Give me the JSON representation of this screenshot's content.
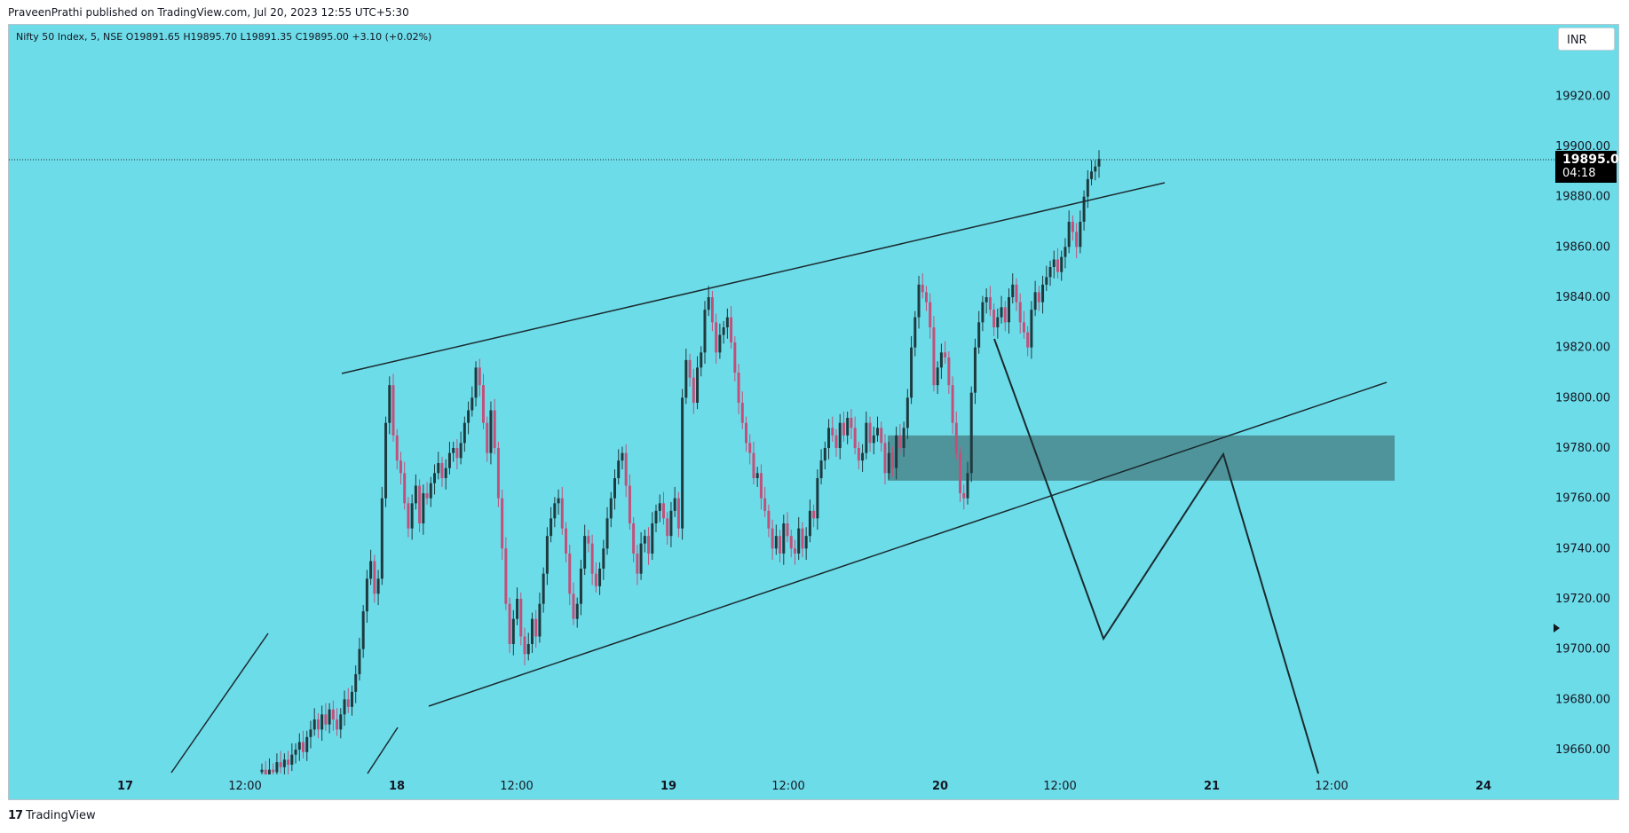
{
  "header": {
    "published": "PraveenPrathi published on TradingView.com, Jul 20, 2023 12:55 UTC+5:30"
  },
  "legend": {
    "text": "Nifty 50 Index, 5, NSE  O19891.65  H19895.70  L19891.35  C19895.00  +3.10 (+0.02%)"
  },
  "currency": "INR",
  "last_price": {
    "price": "19895.00",
    "countdown": "04:18"
  },
  "footer": {
    "logo_glyph": "17",
    "brand": "TradingView"
  },
  "colors": {
    "background": "#6ddce9",
    "up": "#1e3a3f",
    "down": "#c2507a",
    "zone": "#4a878d",
    "lines": "#1a2a2e"
  },
  "chart_data": {
    "type": "candlestick",
    "symbol": "Nifty 50 Index",
    "interval": "5",
    "exchange": "NSE",
    "ohlc": {
      "open": 19891.65,
      "high": 19895.7,
      "low": 19891.35,
      "close": 19895.0,
      "change": 3.1,
      "change_pct": 0.02
    },
    "y_ticks": [
      "19660.00",
      "19680.00",
      "19700.00",
      "19720.00",
      "19740.00",
      "19760.00",
      "19780.00",
      "19800.00",
      "19820.00",
      "19840.00",
      "19860.00",
      "19880.00",
      "19900.00",
      "19920.00"
    ],
    "x_ticks": [
      "17",
      "12:00",
      "18",
      "12:00",
      "19",
      "12:00",
      "20",
      "12:00",
      "21",
      "12:00",
      "24"
    ],
    "ylim": [
      19648,
      19945
    ],
    "close_series": [
      19652,
      19650,
      19652,
      19651,
      19655,
      19653,
      19656,
      19654,
      19658,
      19660,
      19663,
      19659,
      19665,
      19668,
      19672,
      19668,
      19674,
      19670,
      19676,
      19672,
      19668,
      19674,
      19680,
      19677,
      19683,
      19690,
      19700,
      19715,
      19728,
      19735,
      19722,
      19728,
      19760,
      19790,
      19805,
      19785,
      19775,
      19770,
      19758,
      19748,
      19758,
      19765,
      19750,
      19762,
      19760,
      19766,
      19770,
      19774,
      19768,
      19772,
      19778,
      19780,
      19776,
      19782,
      19790,
      19795,
      19800,
      19812,
      19805,
      19790,
      19778,
      19795,
      19780,
      19760,
      19740,
      19718,
      19702,
      19712,
      19720,
      19705,
      19698,
      19702,
      19712,
      19705,
      19718,
      19730,
      19745,
      19752,
      19758,
      19760,
      19748,
      19738,
      19722,
      19712,
      19718,
      19732,
      19745,
      19742,
      19730,
      19725,
      19732,
      19740,
      19752,
      19760,
      19768,
      19775,
      19778,
      19765,
      19750,
      19738,
      19730,
      19742,
      19745,
      19738,
      19750,
      19755,
      19758,
      19752,
      19745,
      19755,
      19760,
      19748,
      19800,
      19815,
      19808,
      19798,
      19812,
      19818,
      19835,
      19840,
      19830,
      19818,
      19825,
      19828,
      19832,
      19822,
      19810,
      19798,
      19790,
      19782,
      19778,
      19768,
      19770,
      19760,
      19755,
      19748,
      19740,
      19745,
      19738,
      19750,
      19745,
      19740,
      19738,
      19748,
      19740,
      19745,
      19755,
      19752,
      19768,
      19775,
      19780,
      19788,
      19785,
      19780,
      19790,
      19785,
      19792,
      19788,
      19780,
      19775,
      19778,
      19790,
      19782,
      19785,
      19788,
      19782,
      19770,
      19778,
      19772,
      19785,
      19780,
      19788,
      19800,
      19820,
      19832,
      19845,
      19842,
      19838,
      19828,
      19805,
      19812,
      19818,
      19816,
      19805,
      19790,
      19778,
      19762,
      19760,
      19770,
      19802,
      19820,
      19830,
      19838,
      19840,
      19835,
      19828,
      19832,
      19836,
      19830,
      19840,
      19845,
      19838,
      19830,
      19826,
      19820,
      19835,
      19842,
      19838,
      19845,
      19848,
      19852,
      19855,
      19850,
      19856,
      19860,
      19870,
      19866,
      19860,
      19870,
      19880,
      19887,
      19890,
      19892,
      19895
    ],
    "drawings": {
      "channel_upper": [
        [
          19808,
          "17 14:45"
        ],
        [
          19880,
          "20 14:35"
        ]
      ],
      "channel_lower": [
        [
          19676,
          "18 10:00"
        ],
        [
          19806,
          "21 14:05"
        ]
      ],
      "demand_zone": [
        19767,
        19785
      ],
      "zigzag_projection": [
        19822,
        19704,
        19778,
        19650
      ]
    }
  }
}
